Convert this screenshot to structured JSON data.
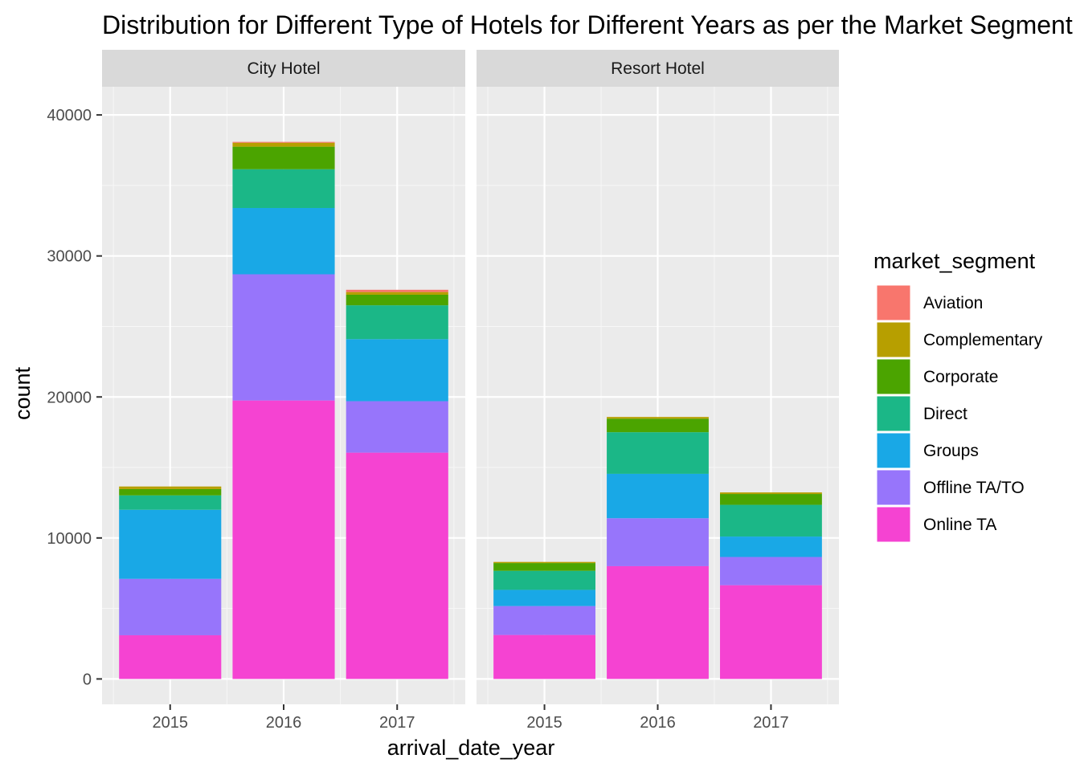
{
  "chart_data": {
    "type": "bar",
    "stacked": true,
    "faceted_by": "hotel",
    "title": "Distribution for Different Type of Hotels for Different Years as per the Market Segment",
    "xlabel": "arrival_date_year",
    "ylabel": "count",
    "ylim": [
      -1800,
      42000
    ],
    "yticks": [
      0,
      10000,
      20000,
      30000,
      40000
    ],
    "categories": [
      "2015",
      "2016",
      "2017"
    ],
    "grid": true,
    "legend": {
      "title": "market_segment",
      "placement": "right",
      "entries": [
        "Aviation",
        "Complementary",
        "Corporate",
        "Direct",
        "Groups",
        "Offline TA/TO",
        "Online TA"
      ]
    },
    "colors": {
      "Aviation": "#F8766D",
      "Complementary": "#B79F00",
      "Corporate": "#4BA400",
      "Direct": "#1BB787",
      "Groups": "#19A8E6",
      "Offline TA/TO": "#9775FB",
      "Online TA": "#F543D2"
    },
    "stack_order": [
      "Online TA",
      "Offline TA/TO",
      "Groups",
      "Direct",
      "Corporate",
      "Complementary",
      "Aviation"
    ],
    "facets": [
      {
        "name": "City Hotel",
        "series": [
          {
            "name": "Aviation",
            "values": [
              0,
              60,
              160
            ]
          },
          {
            "name": "Complementary",
            "values": [
              180,
              280,
              190
            ]
          },
          {
            "name": "Corporate",
            "values": [
              450,
              1600,
              750
            ]
          },
          {
            "name": "Direct",
            "values": [
              1020,
              2750,
              2400
            ]
          },
          {
            "name": "Groups",
            "values": [
              4900,
              4700,
              4400
            ]
          },
          {
            "name": "Offline TA/TO",
            "values": [
              4000,
              8950,
              3650
            ]
          },
          {
            "name": "Online TA",
            "values": [
              3100,
              19750,
              16050
            ]
          }
        ]
      },
      {
        "name": "Resort Hotel",
        "series": [
          {
            "name": "Aviation",
            "values": [
              0,
              0,
              0
            ]
          },
          {
            "name": "Complementary",
            "values": [
              80,
              120,
              110
            ]
          },
          {
            "name": "Corporate",
            "values": [
              550,
              960,
              770
            ]
          },
          {
            "name": "Direct",
            "values": [
              1350,
              2950,
              2250
            ]
          },
          {
            "name": "Groups",
            "values": [
              1150,
              3150,
              1450
            ]
          },
          {
            "name": "Offline TA/TO",
            "values": [
              2050,
              3400,
              2000
            ]
          },
          {
            "name": "Online TA",
            "values": [
              3120,
              8000,
              6650
            ]
          }
        ]
      }
    ]
  }
}
